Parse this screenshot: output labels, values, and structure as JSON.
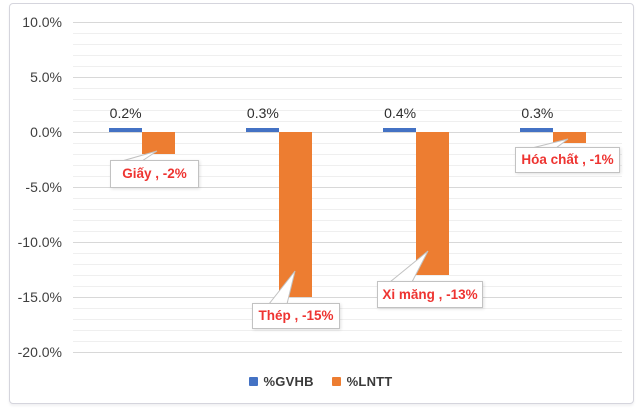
{
  "chart_data": {
    "type": "bar",
    "title": "",
    "categories": [
      "Giấy",
      "Thép",
      "Xi măng",
      "Hóa chất"
    ],
    "series": [
      {
        "name": "%GVHB",
        "color": "#4472C4",
        "values": [
          0.2,
          0.3,
          0.4,
          0.3
        ],
        "data_labels": [
          "0.2%",
          "0.3%",
          "0.4%",
          "0.3%"
        ]
      },
      {
        "name": "%LNTT",
        "color": "#ED7D31",
        "values": [
          -2,
          -15,
          -13,
          -1
        ],
        "callout_labels": [
          "Giấy , -2%",
          "Thép , -15%",
          "Xi măng , -13%",
          "Hóa chất , -1%"
        ]
      }
    ],
    "y_axis": {
      "ticks": [
        "10.0%",
        "5.0%",
        "0.0%",
        "-5.0%",
        "-10.0%",
        "-15.0%",
        "-20.0%"
      ],
      "tick_values": [
        10,
        5,
        0,
        -5,
        -10,
        -15,
        -20
      ],
      "min": -20,
      "max": 10,
      "major_unit": 5,
      "minor_unit": 1
    },
    "legend": {
      "position": "bottom",
      "entries": [
        "%GVHB",
        "%LNTT"
      ]
    },
    "grid": {
      "major": true,
      "minor": true
    }
  },
  "colors": {
    "gvhb": "#4472C4",
    "lntt": "#ED7D31",
    "callout_text": "#ee3431",
    "major_grid": "#d8d8d8",
    "minor_grid": "#efefef"
  }
}
